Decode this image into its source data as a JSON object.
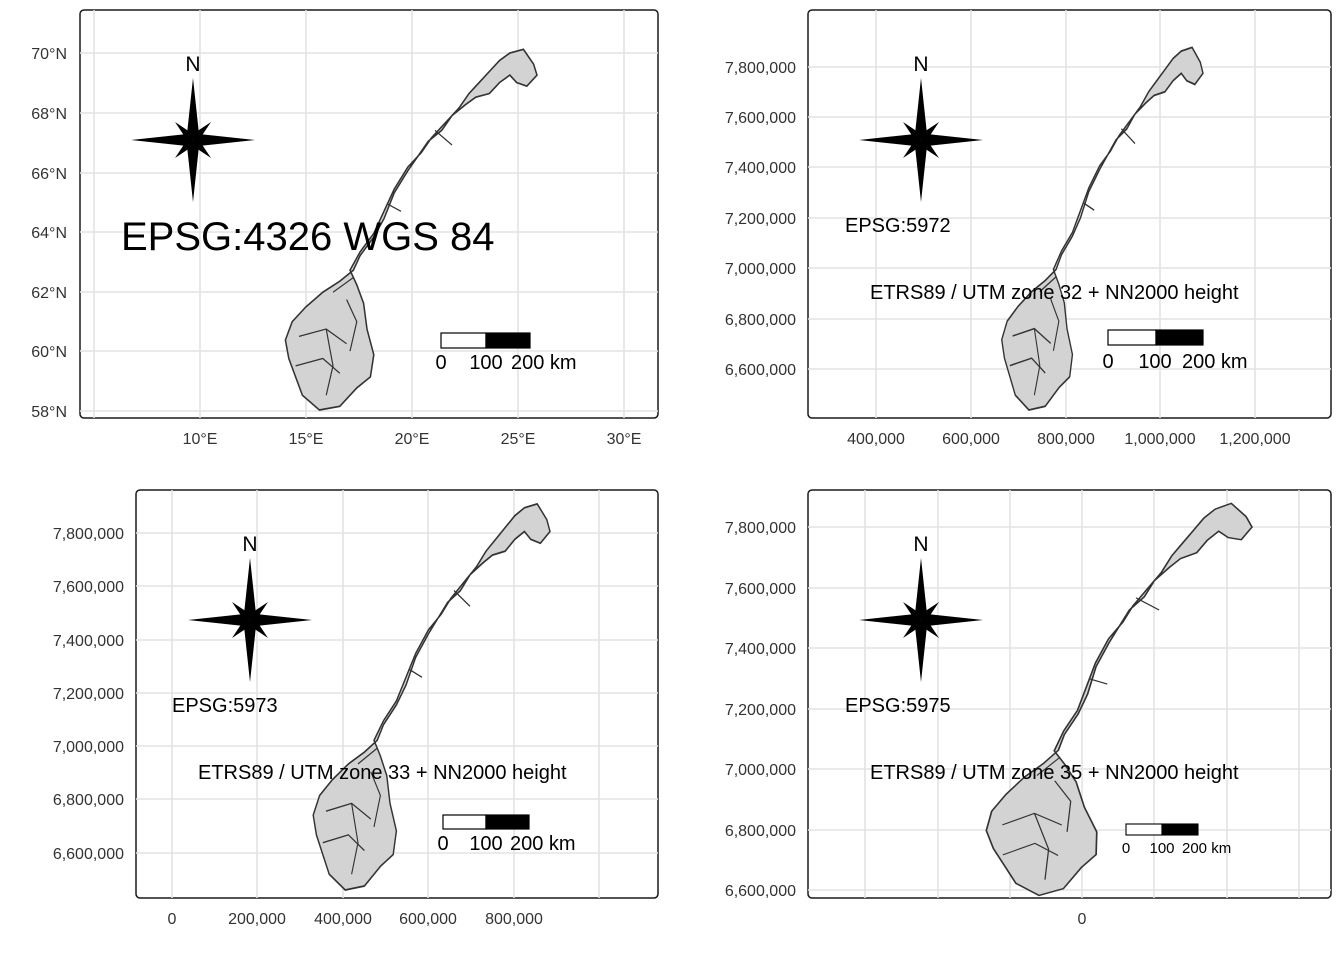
{
  "panels": [
    {
      "id": "p1",
      "y_ticks": [
        "70°N",
        "68°N",
        "66°N",
        "64°N",
        "62°N",
        "60°N",
        "58°N"
      ],
      "x_ticks": [
        "10°E",
        "15°E",
        "20°E",
        "25°E",
        "30°E"
      ],
      "north_label": "N",
      "crs_label": "EPSG:4326 WGS 84",
      "crs_subtitle": "",
      "scale_labels": [
        "0",
        "100",
        "200 km"
      ]
    },
    {
      "id": "p2",
      "y_ticks": [
        "7,800,000",
        "7,600,000",
        "7,400,000",
        "7,200,000",
        "7,000,000",
        "6,800,000",
        "6,600,000"
      ],
      "x_ticks": [
        "400,000",
        "600,000",
        "800,000",
        "1,000,000",
        "1,200,000"
      ],
      "north_label": "N",
      "crs_label": "EPSG:5972",
      "crs_subtitle": "ETRS89 / UTM zone 32 + NN2000 height",
      "scale_labels": [
        "0",
        "100",
        "200 km"
      ]
    },
    {
      "id": "p3",
      "y_ticks": [
        "7,800,000",
        "7,600,000",
        "7,400,000",
        "7,200,000",
        "7,000,000",
        "6,800,000",
        "6,600,000"
      ],
      "x_ticks": [
        "0",
        "200,000",
        "400,000",
        "600,000",
        "800,000"
      ],
      "north_label": "N",
      "crs_label": "EPSG:5973",
      "crs_subtitle": "ETRS89 / UTM zone 33 + NN2000 height",
      "scale_labels": [
        "0",
        "100",
        "200 km"
      ]
    },
    {
      "id": "p4",
      "y_ticks": [
        "7,800,000",
        "7,600,000",
        "7,400,000",
        "7,200,000",
        "7,000,000",
        "6,800,000",
        "6,600,000"
      ],
      "x_ticks": [
        "0"
      ],
      "north_label": "N",
      "crs_label": "EPSG:5975",
      "crs_subtitle": "ETRS89 / UTM zone 35 + NN2000 height",
      "scale_labels": [
        "0",
        "100",
        "200 km"
      ]
    }
  ],
  "colors": {
    "land": "#d3d3d3",
    "border": "#333333",
    "grid": "#e3e3e3",
    "frame": "#1a1a1a",
    "axis_text": "#333333"
  }
}
